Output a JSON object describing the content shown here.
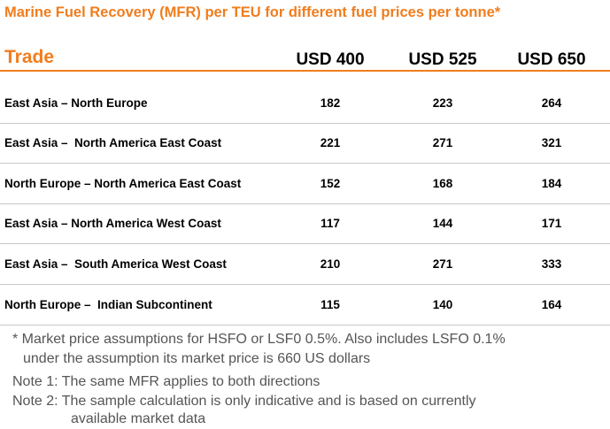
{
  "title": "Marine Fuel Recovery (MFR) per TEU for different fuel prices per tonne*",
  "table": {
    "header": [
      "Trade",
      "USD 400",
      "USD 525",
      "USD 650"
    ],
    "rows": [
      [
        "East Asia – North Europe",
        182,
        223,
        264
      ],
      [
        "East Asia –  North America East Coast",
        221,
        271,
        321
      ],
      [
        "North Europe – North America East Coast",
        152,
        168,
        184
      ],
      [
        "East Asia – North America West Coast",
        117,
        144,
        171
      ],
      [
        "East Asia –  South America West Coast",
        210,
        271,
        333
      ],
      [
        "North Europe –  Indian Subcontinent",
        115,
        140,
        164
      ]
    ]
  },
  "notes": [
    [
      "* Market price assumptions for HSFO or LSF0 0.5%. Also includes LSFO 0.1%",
      "under the assumption its market price is 660 US dollars"
    ],
    [
      "Note 1: The same MFR applies to both directions"
    ],
    [
      "Note 2: The sample calculation is only indicative and is based on currently",
      "available market data"
    ]
  ]
}
